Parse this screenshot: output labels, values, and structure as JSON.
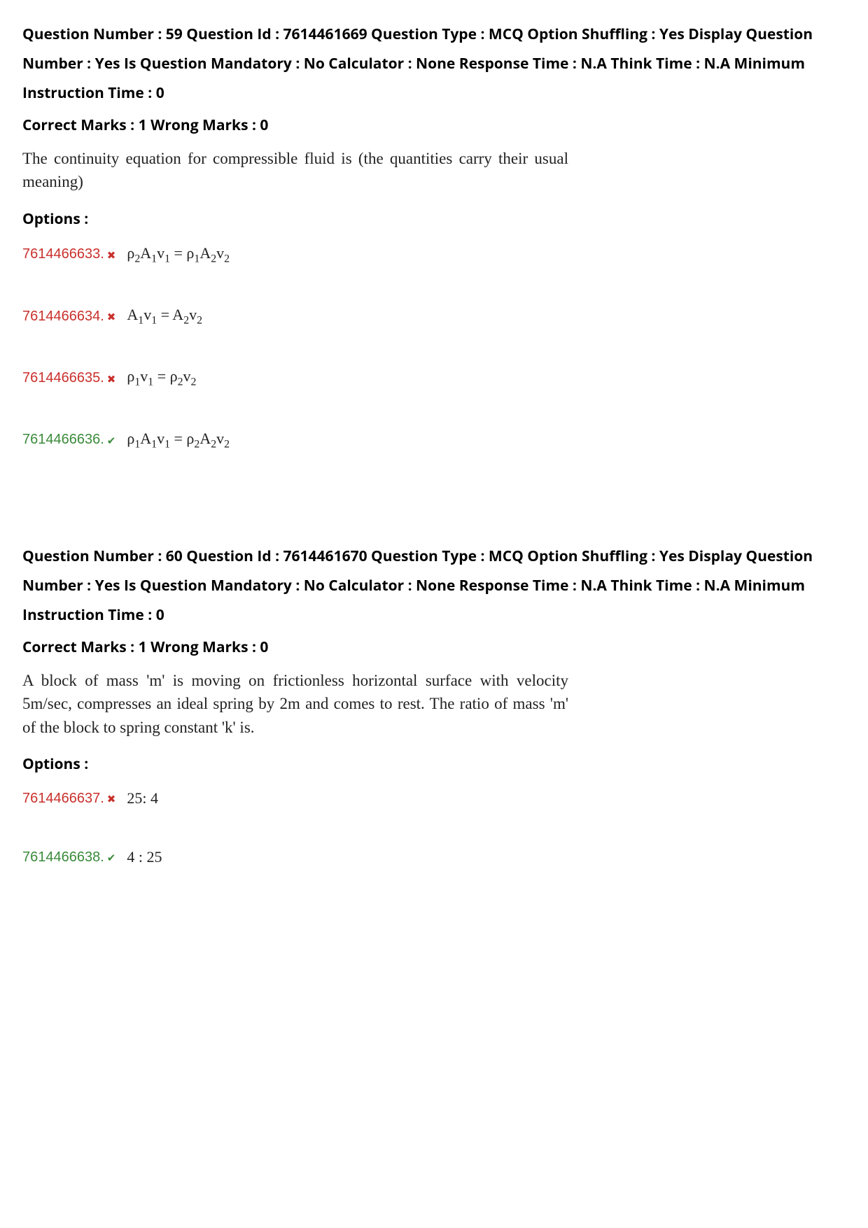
{
  "questions": [
    {
      "meta": {
        "question_number_label": "Question Number :",
        "question_number": "59",
        "question_id_label": "Question Id :",
        "question_id": "7614461669",
        "question_type_label": "Question Type :",
        "question_type": "MCQ",
        "option_shuffling_label": "Option Shuffling :",
        "option_shuffling": "Yes",
        "display_qn_label": "Display Question Number :",
        "display_qn": "Yes",
        "mandatory_label": "Is Question Mandatory :",
        "mandatory": "No",
        "calculator_label": "Calculator :",
        "calculator": "None",
        "response_time_label": "Response Time :",
        "response_time": "N.A",
        "think_time_label": "Think Time :",
        "think_time": "N.A",
        "min_instr_label": "Minimum Instruction Time :",
        "min_instr": "0"
      },
      "marks": {
        "correct_label": "Correct Marks :",
        "correct": "1",
        "wrong_label": "Wrong Marks :",
        "wrong": "0"
      },
      "text": "The continuity equation for compressible fluid is (the quantities carry their usual meaning)",
      "options_heading": "Options :",
      "options": [
        {
          "id": "7614466633",
          "status": "wrong",
          "formula_html": "ρ<sub>2</sub>A<sub>1</sub>v<sub>1</sub> = ρ<sub>1</sub>A<sub>2</sub>v<sub>2</sub>"
        },
        {
          "id": "7614466634",
          "status": "wrong",
          "formula_html": "A<sub>1</sub>v<sub>1</sub> = A<sub>2</sub>v<sub>2</sub>"
        },
        {
          "id": "7614466635",
          "status": "wrong",
          "formula_html": "ρ<sub>1</sub>v<sub>1</sub> = ρ<sub>2</sub>v<sub>2</sub>"
        },
        {
          "id": "7614466636",
          "status": "correct",
          "formula_html": "ρ<sub>1</sub>A<sub>1</sub>v<sub>1</sub> = ρ<sub>2</sub>A<sub>2</sub>v<sub>2</sub>"
        }
      ]
    },
    {
      "meta": {
        "question_number_label": "Question Number :",
        "question_number": "60",
        "question_id_label": "Question Id :",
        "question_id": "7614461670",
        "question_type_label": "Question Type :",
        "question_type": "MCQ",
        "option_shuffling_label": "Option Shuffling :",
        "option_shuffling": "Yes",
        "display_qn_label": "Display Question Number :",
        "display_qn": "Yes",
        "mandatory_label": "Is Question Mandatory :",
        "mandatory": "No",
        "calculator_label": "Calculator :",
        "calculator": "None",
        "response_time_label": "Response Time :",
        "response_time": "N.A",
        "think_time_label": "Think Time :",
        "think_time": "N.A",
        "min_instr_label": "Minimum Instruction Time :",
        "min_instr": "0"
      },
      "marks": {
        "correct_label": "Correct Marks :",
        "correct": "1",
        "wrong_label": "Wrong Marks :",
        "wrong": "0"
      },
      "text": "A block of mass 'm' is moving on frictionless horizontal surface with velocity 5m/sec, compresses an ideal spring by 2m and comes to rest. The ratio of mass 'm' of the block to spring constant 'k' is.",
      "options_heading": "Options :",
      "options": [
        {
          "id": "7614466637",
          "status": "wrong",
          "formula_html": "25: 4"
        },
        {
          "id": "7614466638",
          "status": "correct",
          "formula_html": "4 : 25"
        }
      ]
    }
  ],
  "icons": {
    "wrong": "✖",
    "correct": "✔"
  },
  "colors": {
    "wrong": "#c9302c",
    "correct": "#3b8a3b",
    "text": "#000000",
    "qtext": "#222222",
    "background": "#ffffff"
  },
  "typography": {
    "meta_fontsize": 21,
    "meta_fontweight": 700,
    "qtext_family": "Times New Roman",
    "qtext_fontsize": 23,
    "formula_family": "Times New Roman",
    "formula_fontsize": 22
  }
}
